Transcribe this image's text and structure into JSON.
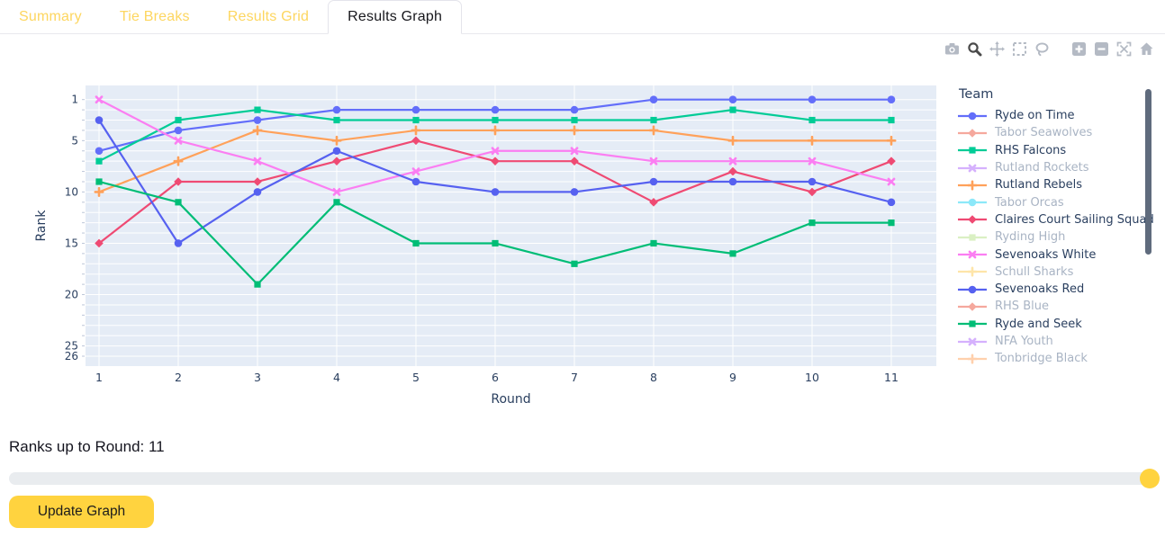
{
  "tabs": [
    {
      "label": "Summary",
      "active": false
    },
    {
      "label": "Tie Breaks",
      "active": false
    },
    {
      "label": "Results Grid",
      "active": false
    },
    {
      "label": "Results Graph",
      "active": true
    }
  ],
  "colors": {
    "tab_inactive_text": "#fdd65f",
    "tab_active_text": "#17171c",
    "accent_yellow": "#ffd33f",
    "plot_background": "#e5ecf6",
    "grid_line": "#ffffff",
    "axis_text": "#2a3f5f",
    "legend_muted_text": "#a9b4c4",
    "modebar_idle": "#b4bac4",
    "modebar_active": "#4a4a4a",
    "slider_track": "#e9ecef",
    "legend_scrollbar": "#5f6b7d"
  },
  "modebar_icons": [
    "camera",
    "zoom",
    "pan",
    "box-select",
    "lasso-select",
    "zoom-in",
    "zoom-out",
    "autoscale",
    "reset-home"
  ],
  "chart_data": {
    "type": "line",
    "title": "",
    "xlabel": "Round",
    "ylabel": "Rank",
    "legend_title": "Team",
    "x": [
      1,
      2,
      3,
      4,
      5,
      6,
      7,
      8,
      9,
      10,
      11
    ],
    "y_axis": {
      "reversed": true,
      "min": 1,
      "max": 26,
      "ticks": [
        1,
        5,
        10,
        15,
        20,
        25,
        26
      ]
    },
    "grid": true,
    "legend_position": "right",
    "series": [
      {
        "name": "Ryde on Time",
        "color": "#636efa",
        "symbol": "circle",
        "visible": true,
        "values": [
          6,
          4,
          3,
          2,
          2,
          2,
          2,
          1,
          1,
          1,
          1
        ]
      },
      {
        "name": "Tabor Seawolves",
        "color": "#f5a89d",
        "symbol": "diamond",
        "visible": false,
        "values": null
      },
      {
        "name": "RHS Falcons",
        "color": "#00cc96",
        "symbol": "square",
        "visible": true,
        "values": [
          7,
          3,
          2,
          3,
          3,
          3,
          3,
          3,
          2,
          3,
          3
        ]
      },
      {
        "name": "Rutland Rockets",
        "color": "#d5b1fd",
        "symbol": "x",
        "visible": false,
        "values": null
      },
      {
        "name": "Rutland Rebels",
        "color": "#ffa15a",
        "symbol": "cross",
        "visible": true,
        "values": [
          10,
          7,
          4,
          5,
          4,
          4,
          4,
          4,
          5,
          5,
          5
        ]
      },
      {
        "name": "Tabor Orcas",
        "color": "#8ce8f9",
        "symbol": "circle",
        "visible": false,
        "values": null
      },
      {
        "name": "Claires Court Sailing Squad",
        "color": "#ef4a73",
        "symbol": "diamond",
        "visible": true,
        "values": [
          15,
          9,
          9,
          7,
          5,
          7,
          7,
          11,
          8,
          10,
          7
        ]
      },
      {
        "name": "Ryding High",
        "color": "#daf0c3",
        "symbol": "square",
        "visible": false,
        "values": null
      },
      {
        "name": "Sevenoaks White",
        "color": "#fb7ef2",
        "symbol": "x",
        "visible": true,
        "values": [
          1,
          5,
          7,
          10,
          8,
          6,
          6,
          7,
          7,
          7,
          9
        ]
      },
      {
        "name": "Schull Sharks",
        "color": "#fee5a9",
        "symbol": "cross",
        "visible": false,
        "values": null
      },
      {
        "name": "Sevenoaks Red",
        "color": "#5661f0",
        "symbol": "circle",
        "visible": true,
        "values": [
          3,
          15,
          10,
          6,
          9,
          10,
          10,
          9,
          9,
          9,
          11
        ]
      },
      {
        "name": "RHS Blue",
        "color": "#f5a89d",
        "symbol": "diamond",
        "visible": false,
        "values": null
      },
      {
        "name": "Ryde and Seek",
        "color": "#00bd76",
        "symbol": "square",
        "visible": true,
        "values": [
          9,
          11,
          19,
          11,
          15,
          15,
          17,
          15,
          16,
          13,
          13
        ]
      },
      {
        "name": "NFA Youth",
        "color": "#d5b1fd",
        "symbol": "x",
        "visible": false,
        "values": null
      },
      {
        "name": "Tonbridge Black",
        "color": "#ffd0ac",
        "symbol": "cross",
        "visible": false,
        "values": null
      }
    ]
  },
  "controls": {
    "slider_label": "Ranks up to Round: 11",
    "slider_value": 11,
    "update_button": "Update Graph"
  }
}
